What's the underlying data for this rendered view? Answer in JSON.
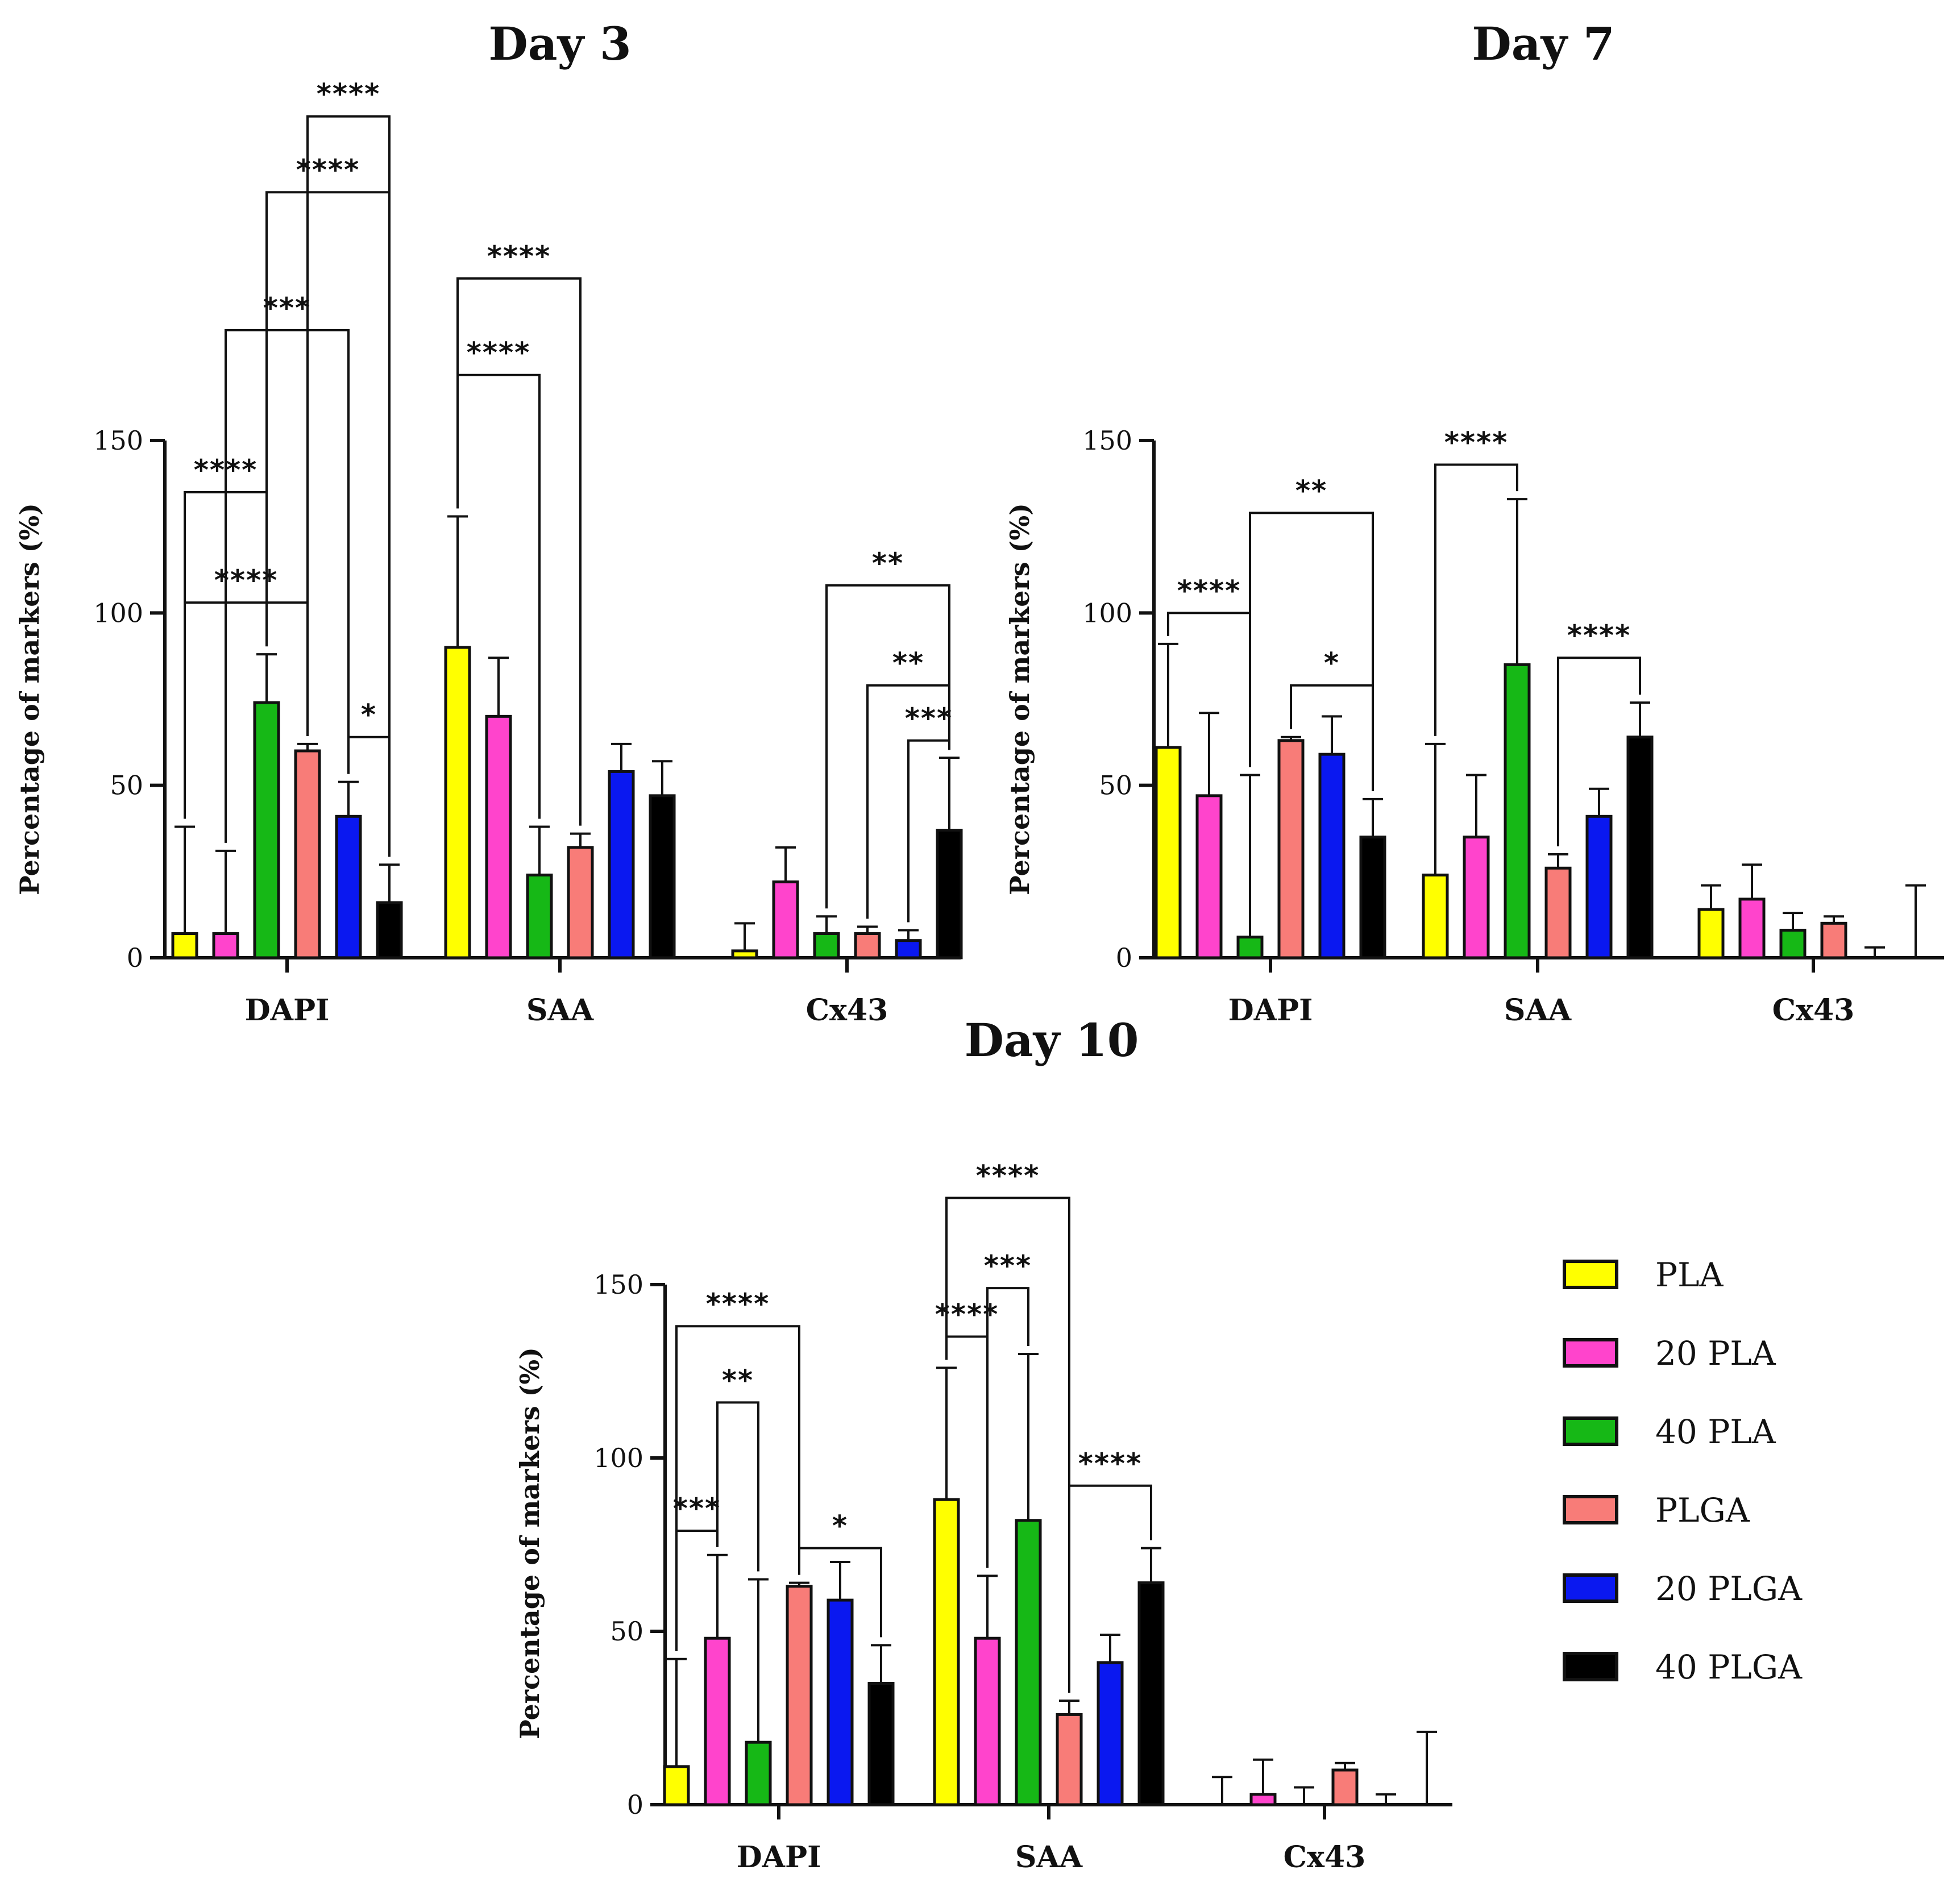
{
  "figure": {
    "y_axis_label": "Percentage of markers (%)",
    "categories": [
      "DAPI",
      "SAA",
      "Cx43"
    ],
    "series_colors": {
      "PLA": "#ffff00",
      "20 PLA": "#ff44cc",
      "40 PLA": "#16b816",
      "PLGA": "#f87c78",
      "20 PLGA": "#0a18f0",
      "40 PLGA": "#000000"
    }
  },
  "legend": {
    "items": [
      {
        "label": "PLA",
        "color": "#ffff00"
      },
      {
        "label": "20 PLA",
        "color": "#ff44cc"
      },
      {
        "label": "40 PLA",
        "color": "#16b816"
      },
      {
        "label": "PLGA",
        "color": "#f87c78"
      },
      {
        "label": "20 PLGA",
        "color": "#0a18f0"
      },
      {
        "label": "40 PLGA",
        "color": "#000000"
      }
    ]
  },
  "chart_data": [
    {
      "type": "bar",
      "title": "Day 3",
      "xlabel": "",
      "ylabel": "Percentage of markers (%)",
      "ylim": [
        0,
        150
      ],
      "yticks": [
        0,
        50,
        100,
        150
      ],
      "categories": [
        "DAPI",
        "SAA",
        "Cx43"
      ],
      "series": [
        {
          "name": "PLA",
          "values": [
            7,
            90,
            2
          ],
          "errors": [
            31,
            38,
            8
          ]
        },
        {
          "name": "20 PLA",
          "values": [
            7,
            70,
            22
          ],
          "errors": [
            24,
            17,
            10
          ]
        },
        {
          "name": "40 PLA",
          "values": [
            74,
            24,
            7
          ],
          "errors": [
            14,
            14,
            5
          ]
        },
        {
          "name": "PLGA",
          "values": [
            60,
            32,
            7
          ],
          "errors": [
            2,
            4,
            2
          ]
        },
        {
          "name": "20 PLGA",
          "values": [
            41,
            54,
            5
          ],
          "errors": [
            10,
            8,
            3
          ]
        },
        {
          "name": "40 PLGA",
          "values": [
            16,
            47,
            37
          ],
          "errors": [
            11,
            10,
            21
          ]
        }
      ],
      "significance": [
        {
          "category": "DAPI",
          "from": "PLA",
          "to": "40 PLA",
          "label": "****",
          "level": 135
        },
        {
          "category": "DAPI",
          "from": "PLA",
          "to": "PLGA",
          "label": "****",
          "level": 103
        },
        {
          "category": "DAPI",
          "from": "20 PLA",
          "to": "20 PLGA",
          "label": "***",
          "level": 182
        },
        {
          "category": "DAPI",
          "from": "40 PLA",
          "to": "40 PLGA",
          "label": "****",
          "level": 222
        },
        {
          "category": "DAPI",
          "from": "PLGA",
          "to": "40 PLGA",
          "label": "****",
          "level": 244
        },
        {
          "category": "DAPI",
          "from": "20 PLGA",
          "to": "40 PLGA",
          "label": "*",
          "level": 64
        },
        {
          "category": "SAA",
          "from": "PLA",
          "to": "40 PLA",
          "label": "****",
          "level": 169
        },
        {
          "category": "SAA",
          "from": "PLA",
          "to": "PLGA",
          "label": "****",
          "level": 197
        },
        {
          "category": "Cx43",
          "from": "40 PLA",
          "to": "40 PLGA",
          "label": "**",
          "level": 108
        },
        {
          "category": "Cx43",
          "from": "PLGA",
          "to": "40 PLGA",
          "label": "**",
          "level": 79
        },
        {
          "category": "Cx43",
          "from": "20 PLGA",
          "to": "40 PLGA",
          "label": "***",
          "level": 63
        }
      ]
    },
    {
      "type": "bar",
      "title": "Day 7",
      "xlabel": "",
      "ylabel": "Percentage of markers (%)",
      "ylim": [
        0,
        150
      ],
      "yticks": [
        0,
        50,
        100,
        150
      ],
      "categories": [
        "DAPI",
        "SAA",
        "Cx43"
      ],
      "series": [
        {
          "name": "PLA",
          "values": [
            61,
            24,
            14
          ],
          "errors": [
            30,
            38,
            7
          ]
        },
        {
          "name": "20 PLA",
          "values": [
            47,
            35,
            17
          ],
          "errors": [
            24,
            18,
            10
          ]
        },
        {
          "name": "40 PLA",
          "values": [
            6,
            85,
            8
          ],
          "errors": [
            47,
            48,
            5
          ]
        },
        {
          "name": "PLGA",
          "values": [
            63,
            26,
            10
          ],
          "errors": [
            1,
            4,
            2
          ]
        },
        {
          "name": "20 PLGA",
          "values": [
            59,
            41,
            0
          ],
          "errors": [
            11,
            8,
            3
          ]
        },
        {
          "name": "40 PLGA",
          "values": [
            35,
            64,
            0
          ],
          "errors": [
            11,
            10,
            21
          ]
        }
      ],
      "significance": [
        {
          "category": "DAPI",
          "from": "PLA",
          "to": "40 PLA",
          "label": "****",
          "level": 100
        },
        {
          "category": "DAPI",
          "from": "40 PLA",
          "to": "40 PLGA",
          "label": "**",
          "level": 129
        },
        {
          "category": "DAPI",
          "from": "PLGA",
          "to": "40 PLGA",
          "label": "*",
          "level": 79
        },
        {
          "category": "SAA",
          "from": "PLA",
          "to": "40 PLA",
          "label": "****",
          "level": 143
        },
        {
          "category": "SAA",
          "from": "PLGA",
          "to": "40 PLGA",
          "label": "****",
          "level": 87
        }
      ]
    },
    {
      "type": "bar",
      "title": "Day 10",
      "xlabel": "",
      "ylabel": "Percentage of markers (%)",
      "ylim": [
        0,
        150
      ],
      "yticks": [
        0,
        50,
        100,
        150
      ],
      "categories": [
        "DAPI",
        "SAA",
        "Cx43"
      ],
      "series": [
        {
          "name": "PLA",
          "values": [
            11,
            88,
            0
          ],
          "errors": [
            31,
            38,
            8
          ]
        },
        {
          "name": "20 PLA",
          "values": [
            48,
            48,
            3
          ],
          "errors": [
            24,
            18,
            10
          ]
        },
        {
          "name": "40 PLA",
          "values": [
            18,
            82,
            0
          ],
          "errors": [
            47,
            48,
            5
          ]
        },
        {
          "name": "PLGA",
          "values": [
            63,
            26,
            10
          ],
          "errors": [
            1,
            4,
            2
          ]
        },
        {
          "name": "20 PLGA",
          "values": [
            59,
            41,
            0
          ],
          "errors": [
            11,
            8,
            3
          ]
        },
        {
          "name": "40 PLGA",
          "values": [
            35,
            64,
            0
          ],
          "errors": [
            11,
            10,
            21
          ]
        }
      ],
      "significance": [
        {
          "category": "DAPI",
          "from": "PLA",
          "to": "20 PLA",
          "label": "***",
          "level": 79
        },
        {
          "category": "DAPI",
          "from": "20 PLA",
          "to": "40 PLA",
          "label": "**",
          "level": 116
        },
        {
          "category": "DAPI",
          "from": "PLA",
          "to": "PLGA",
          "label": "****",
          "level": 138
        },
        {
          "category": "DAPI",
          "from": "PLGA",
          "to": "40 PLGA",
          "label": "*",
          "level": 74
        },
        {
          "category": "SAA",
          "from": "PLA",
          "to": "20 PLA",
          "label": "****",
          "level": 135
        },
        {
          "category": "SAA",
          "from": "20 PLA",
          "to": "40 PLA",
          "label": "***",
          "level": 149
        },
        {
          "category": "SAA",
          "from": "PLA",
          "to": "PLGA",
          "label": "****",
          "level": 175
        },
        {
          "category": "SAA",
          "from": "PLGA",
          "to": "40 PLGA",
          "label": "****",
          "level": 92
        }
      ]
    }
  ]
}
